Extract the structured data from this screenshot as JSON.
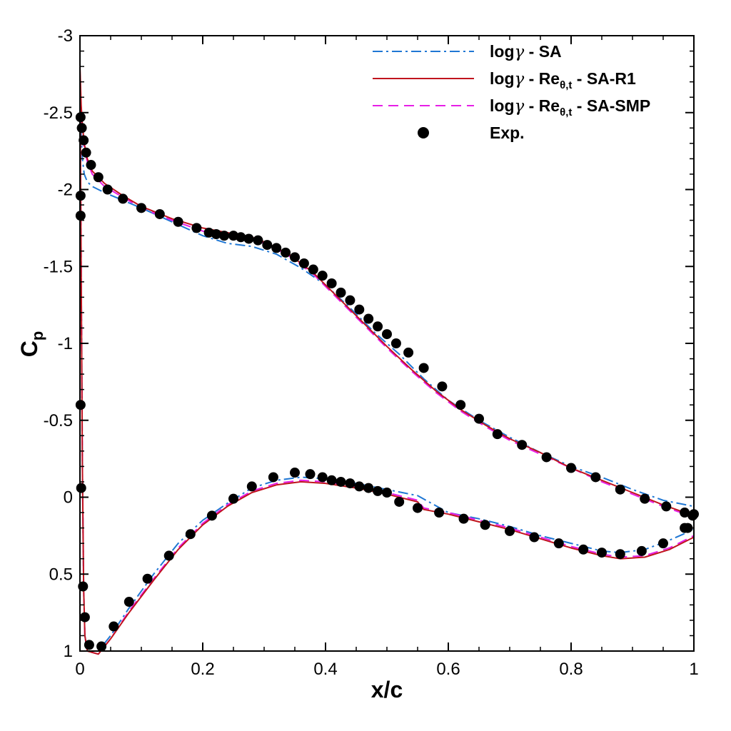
{
  "chart_data": {
    "type": "line",
    "xlabel": "x/c",
    "ylabel": "C",
    "ylabel_subscript": "p",
    "xlim": [
      0,
      1
    ],
    "ylim": [
      1,
      -3
    ],
    "y_inverted": true,
    "grid": false,
    "legend_position": "top-right",
    "xticks": [
      "0",
      "0.2",
      "0.4",
      "0.6",
      "0.8",
      "1"
    ],
    "xtick_values": [
      0,
      0.2,
      0.4,
      0.6,
      0.8,
      1
    ],
    "yticks": [
      "-3",
      "-2.5",
      "-2",
      "-1.5",
      "-1",
      "-0.5",
      "0",
      "0.5",
      "1"
    ],
    "ytick_values": [
      -3,
      -2.5,
      -2,
      -1.5,
      -1,
      -0.5,
      0,
      0.5,
      1
    ],
    "legend": [
      {
        "id": "sa",
        "base": "log",
        "greek": "γ",
        "text": " - SA",
        "sub": "",
        "tail": ""
      },
      {
        "id": "r1",
        "base": "log",
        "greek": "γ",
        "text": " - Re",
        "sub": "θ,t",
        "tail": " - SA-R1"
      },
      {
        "id": "smp",
        "base": "log",
        "greek": "γ",
        "text": " - Re",
        "sub": "θ,t",
        "tail": " - SA-SMP"
      },
      {
        "id": "exp",
        "base": "Exp.",
        "greek": "",
        "text": "",
        "sub": "",
        "tail": ""
      }
    ],
    "series": [
      {
        "name": "logγ - SA",
        "style": "dashdot",
        "color": "#1f77d4",
        "upper": [
          [
            0,
            -2.75
          ],
          [
            0.002,
            -2.35
          ],
          [
            0.004,
            -2.2
          ],
          [
            0.007,
            -2.1
          ],
          [
            0.012,
            -2.05
          ],
          [
            0.02,
            -2.02
          ],
          [
            0.04,
            -1.98
          ],
          [
            0.07,
            -1.93
          ],
          [
            0.1,
            -1.88
          ],
          [
            0.15,
            -1.79
          ],
          [
            0.2,
            -1.7
          ],
          [
            0.24,
            -1.65
          ],
          [
            0.28,
            -1.63
          ],
          [
            0.32,
            -1.58
          ],
          [
            0.36,
            -1.49
          ],
          [
            0.4,
            -1.38
          ],
          [
            0.44,
            -1.23
          ],
          [
            0.48,
            -1.07
          ],
          [
            0.52,
            -0.93
          ],
          [
            0.56,
            -0.77
          ],
          [
            0.6,
            -0.63
          ],
          [
            0.65,
            -0.5
          ],
          [
            0.7,
            -0.39
          ],
          [
            0.75,
            -0.29
          ],
          [
            0.8,
            -0.2
          ],
          [
            0.85,
            -0.13
          ],
          [
            0.9,
            -0.05
          ],
          [
            0.95,
            0.02
          ],
          [
            1,
            0.06
          ]
        ],
        "lower": [
          [
            0,
            -2.75
          ],
          [
            0.002,
            -1.5
          ],
          [
            0.004,
            -0.2
          ],
          [
            0.006,
            0.6
          ],
          [
            0.008,
            0.9
          ],
          [
            0.012,
            1.0
          ],
          [
            0.03,
            1.0
          ],
          [
            0.05,
            0.9
          ],
          [
            0.08,
            0.72
          ],
          [
            0.12,
            0.5
          ],
          [
            0.16,
            0.3
          ],
          [
            0.2,
            0.15
          ],
          [
            0.24,
            0.04
          ],
          [
            0.28,
            -0.06
          ],
          [
            0.32,
            -0.11
          ],
          [
            0.36,
            -0.13
          ],
          [
            0.4,
            -0.12
          ],
          [
            0.45,
            -0.09
          ],
          [
            0.5,
            -0.05
          ],
          [
            0.55,
            -0.01
          ],
          [
            0.6,
            0.1
          ],
          [
            0.65,
            0.14
          ],
          [
            0.7,
            0.19
          ],
          [
            0.75,
            0.25
          ],
          [
            0.8,
            0.3
          ],
          [
            0.85,
            0.35
          ],
          [
            0.88,
            0.36
          ],
          [
            0.92,
            0.34
          ],
          [
            0.96,
            0.28
          ],
          [
            1,
            0.21
          ]
        ]
      },
      {
        "name": "logγ - Re θ,t - SA-R1",
        "style": "solid",
        "color": "#c0141e",
        "upper": [
          [
            0,
            -2.8
          ],
          [
            0.002,
            -2.55
          ],
          [
            0.004,
            -2.42
          ],
          [
            0.007,
            -2.3
          ],
          [
            0.012,
            -2.2
          ],
          [
            0.02,
            -2.12
          ],
          [
            0.04,
            -2.04
          ],
          [
            0.07,
            -1.96
          ],
          [
            0.1,
            -1.89
          ],
          [
            0.15,
            -1.81
          ],
          [
            0.2,
            -1.75
          ],
          [
            0.24,
            -1.72
          ],
          [
            0.28,
            -1.69
          ],
          [
            0.3,
            -1.66
          ],
          [
            0.34,
            -1.58
          ],
          [
            0.38,
            -1.46
          ],
          [
            0.42,
            -1.3
          ],
          [
            0.46,
            -1.14
          ],
          [
            0.5,
            -0.98
          ],
          [
            0.54,
            -0.83
          ],
          [
            0.58,
            -0.69
          ],
          [
            0.62,
            -0.57
          ],
          [
            0.66,
            -0.47
          ],
          [
            0.7,
            -0.38
          ],
          [
            0.75,
            -0.29
          ],
          [
            0.8,
            -0.19
          ],
          [
            0.85,
            -0.11
          ],
          [
            0.9,
            -0.03
          ],
          [
            0.95,
            0.05
          ],
          [
            1,
            0.12
          ]
        ],
        "lower": [
          [
            0,
            -2.8
          ],
          [
            0.002,
            -1.5
          ],
          [
            0.004,
            -0.2
          ],
          [
            0.006,
            0.6
          ],
          [
            0.008,
            0.9
          ],
          [
            0.012,
            1.0
          ],
          [
            0.03,
            1.02
          ],
          [
            0.05,
            0.92
          ],
          [
            0.08,
            0.75
          ],
          [
            0.12,
            0.54
          ],
          [
            0.16,
            0.34
          ],
          [
            0.2,
            0.18
          ],
          [
            0.24,
            0.06
          ],
          [
            0.28,
            -0.03
          ],
          [
            0.32,
            -0.08
          ],
          [
            0.36,
            -0.1
          ],
          [
            0.4,
            -0.09
          ],
          [
            0.45,
            -0.06
          ],
          [
            0.5,
            -0.02
          ],
          [
            0.55,
            0.03
          ],
          [
            0.56,
            0.08
          ],
          [
            0.6,
            0.11
          ],
          [
            0.65,
            0.16
          ],
          [
            0.7,
            0.21
          ],
          [
            0.75,
            0.27
          ],
          [
            0.8,
            0.33
          ],
          [
            0.85,
            0.38
          ],
          [
            0.88,
            0.4
          ],
          [
            0.92,
            0.39
          ],
          [
            0.96,
            0.34
          ],
          [
            1,
            0.26
          ]
        ]
      },
      {
        "name": "logγ - Re θ,t - SA-SMP",
        "style": "dashed",
        "color": "#e61ee6",
        "upper": [
          [
            0,
            -2.75
          ],
          [
            0.002,
            -2.5
          ],
          [
            0.004,
            -2.38
          ],
          [
            0.007,
            -2.27
          ],
          [
            0.012,
            -2.18
          ],
          [
            0.02,
            -2.1
          ],
          [
            0.04,
            -2.02
          ],
          [
            0.07,
            -1.95
          ],
          [
            0.1,
            -1.88
          ],
          [
            0.15,
            -1.8
          ],
          [
            0.2,
            -1.73
          ],
          [
            0.24,
            -1.71
          ],
          [
            0.28,
            -1.68
          ],
          [
            0.3,
            -1.65
          ],
          [
            0.34,
            -1.57
          ],
          [
            0.38,
            -1.45
          ],
          [
            0.42,
            -1.29
          ],
          [
            0.46,
            -1.13
          ],
          [
            0.5,
            -0.97
          ],
          [
            0.54,
            -0.82
          ],
          [
            0.58,
            -0.68
          ],
          [
            0.62,
            -0.56
          ],
          [
            0.66,
            -0.46
          ],
          [
            0.7,
            -0.37
          ],
          [
            0.75,
            -0.28
          ],
          [
            0.8,
            -0.19
          ],
          [
            0.85,
            -0.1
          ],
          [
            0.9,
            -0.02
          ],
          [
            0.95,
            0.06
          ],
          [
            1,
            0.13
          ]
        ],
        "lower": [
          [
            0,
            -2.75
          ],
          [
            0.002,
            -1.5
          ],
          [
            0.004,
            -0.2
          ],
          [
            0.006,
            0.6
          ],
          [
            0.008,
            0.9
          ],
          [
            0.012,
            1.0
          ],
          [
            0.03,
            1.02
          ],
          [
            0.05,
            0.92
          ],
          [
            0.08,
            0.74
          ],
          [
            0.12,
            0.53
          ],
          [
            0.16,
            0.33
          ],
          [
            0.2,
            0.17
          ],
          [
            0.24,
            0.05
          ],
          [
            0.28,
            -0.04
          ],
          [
            0.32,
            -0.09
          ],
          [
            0.36,
            -0.11
          ],
          [
            0.4,
            -0.1
          ],
          [
            0.45,
            -0.07
          ],
          [
            0.5,
            -0.03
          ],
          [
            0.55,
            0.02
          ],
          [
            0.56,
            0.07
          ],
          [
            0.6,
            0.1
          ],
          [
            0.65,
            0.15
          ],
          [
            0.7,
            0.2
          ],
          [
            0.75,
            0.26
          ],
          [
            0.8,
            0.32
          ],
          [
            0.85,
            0.37
          ],
          [
            0.88,
            0.39
          ],
          [
            0.92,
            0.38
          ],
          [
            0.96,
            0.33
          ],
          [
            1,
            0.25
          ]
        ]
      },
      {
        "name": "Exp.",
        "style": "markers",
        "color": "#000000",
        "points": [
          [
            0.001,
            -2.47
          ],
          [
            0.003,
            -2.4
          ],
          [
            0.006,
            -2.32
          ],
          [
            0.01,
            -2.24
          ],
          [
            0.018,
            -2.16
          ],
          [
            0.03,
            -2.08
          ],
          [
            0.045,
            -2.0
          ],
          [
            0.07,
            -1.94
          ],
          [
            0.1,
            -1.88
          ],
          [
            0.13,
            -1.84
          ],
          [
            0.16,
            -1.79
          ],
          [
            0.19,
            -1.75
          ],
          [
            0.21,
            -1.72
          ],
          [
            0.222,
            -1.71
          ],
          [
            0.235,
            -1.7
          ],
          [
            0.25,
            -1.7
          ],
          [
            0.262,
            -1.69
          ],
          [
            0.275,
            -1.68
          ],
          [
            0.29,
            -1.67
          ],
          [
            0.305,
            -1.64
          ],
          [
            0.32,
            -1.62
          ],
          [
            0.335,
            -1.59
          ],
          [
            0.35,
            -1.56
          ],
          [
            0.365,
            -1.52
          ],
          [
            0.38,
            -1.48
          ],
          [
            0.395,
            -1.44
          ],
          [
            0.41,
            -1.39
          ],
          [
            0.425,
            -1.33
          ],
          [
            0.44,
            -1.28
          ],
          [
            0.455,
            -1.22
          ],
          [
            0.47,
            -1.16
          ],
          [
            0.485,
            -1.11
          ],
          [
            0.5,
            -1.06
          ],
          [
            0.515,
            -1.0
          ],
          [
            0.535,
            -0.94
          ],
          [
            0.56,
            -0.84
          ],
          [
            0.59,
            -0.72
          ],
          [
            0.62,
            -0.6
          ],
          [
            0.65,
            -0.51
          ],
          [
            0.68,
            -0.41
          ],
          [
            0.72,
            -0.34
          ],
          [
            0.76,
            -0.26
          ],
          [
            0.8,
            -0.19
          ],
          [
            0.84,
            -0.13
          ],
          [
            0.88,
            -0.05
          ],
          [
            0.92,
            0.01
          ],
          [
            0.955,
            0.06
          ],
          [
            0.985,
            0.1
          ],
          [
            1.0,
            0.11
          ],
          [
            0.998,
            0.12
          ],
          [
            0.985,
            0.2
          ],
          [
            0.001,
            -1.96
          ],
          [
            0.001,
            -1.83
          ],
          [
            0.001,
            -0.6
          ],
          [
            0.002,
            -0.06
          ],
          [
            0.005,
            0.58
          ],
          [
            0.008,
            0.78
          ],
          [
            0.015,
            0.96
          ],
          [
            0.035,
            0.97
          ],
          [
            0.055,
            0.84
          ],
          [
            0.08,
            0.68
          ],
          [
            0.11,
            0.53
          ],
          [
            0.145,
            0.38
          ],
          [
            0.18,
            0.24
          ],
          [
            0.215,
            0.12
          ],
          [
            0.25,
            0.01
          ],
          [
            0.28,
            -0.07
          ],
          [
            0.315,
            -0.13
          ],
          [
            0.35,
            -0.16
          ],
          [
            0.375,
            -0.15
          ],
          [
            0.395,
            -0.13
          ],
          [
            0.41,
            -0.11
          ],
          [
            0.425,
            -0.1
          ],
          [
            0.44,
            -0.09
          ],
          [
            0.455,
            -0.07
          ],
          [
            0.47,
            -0.06
          ],
          [
            0.485,
            -0.04
          ],
          [
            0.5,
            -0.03
          ],
          [
            0.52,
            0.03
          ],
          [
            0.55,
            0.07
          ],
          [
            0.585,
            0.1
          ],
          [
            0.625,
            0.14
          ],
          [
            0.66,
            0.18
          ],
          [
            0.7,
            0.22
          ],
          [
            0.74,
            0.26
          ],
          [
            0.78,
            0.3
          ],
          [
            0.82,
            0.34
          ],
          [
            0.85,
            0.36
          ],
          [
            0.88,
            0.37
          ],
          [
            0.915,
            0.35
          ],
          [
            0.95,
            0.3
          ],
          [
            0.99,
            0.2
          ]
        ]
      }
    ]
  }
}
